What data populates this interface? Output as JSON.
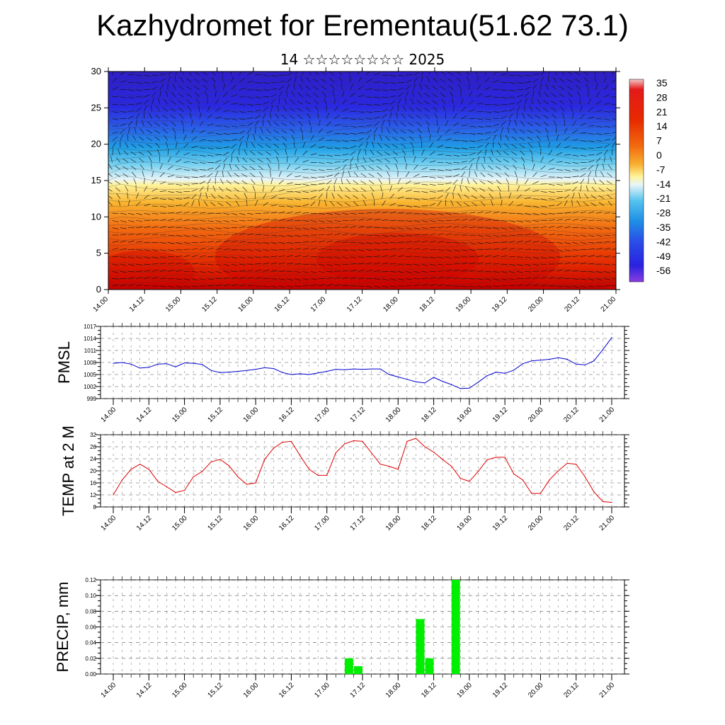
{
  "title": "Kazhydromet for Erementau(51.62 73.1)",
  "subtitle": "14 ☆☆☆☆☆☆☆☆ 2025",
  "x_tick_labels": [
    "14.00",
    "14.12",
    "15.00",
    "15.12",
    "16.00",
    "16.12",
    "17.00",
    "17.12",
    "18.00",
    "18.12",
    "19.00",
    "19.12",
    "20.00",
    "20.12",
    "21.00"
  ],
  "chart_data": [
    {
      "type": "heatmap",
      "name_printed": "",
      "x_ticks": [
        "14.00",
        "14.12",
        "15.00",
        "15.12",
        "16.00",
        "16.12",
        "17.00",
        "17.12",
        "18.00",
        "18.12",
        "19.00",
        "19.12",
        "20.00",
        "20.12",
        "21.00"
      ],
      "ylim": [
        0,
        30
      ],
      "y_ticks": [
        0,
        5,
        10,
        15,
        20,
        25,
        30
      ],
      "colorbar_levels": [
        35,
        28,
        21,
        14,
        7,
        0,
        -7,
        -14,
        -21,
        -28,
        -35,
        -42,
        -49,
        -56
      ],
      "overlay": "wind vectors"
    },
    {
      "type": "line",
      "ylabel": "PMSL",
      "ylim": [
        999,
        1017
      ],
      "y_ticks": [
        999,
        1002,
        1005,
        1008,
        1011,
        1014,
        1017
      ],
      "color": "#0000cc",
      "x": [
        0,
        0.125,
        0.25,
        0.375,
        0.5,
        0.625,
        0.75,
        0.875,
        1,
        1.125,
        1.25,
        1.375,
        1.5,
        1.625,
        1.75,
        1.875,
        2,
        2.125,
        2.25,
        2.375,
        2.5,
        2.625,
        2.75,
        2.875,
        3,
        3.125,
        3.25,
        3.375,
        3.5,
        3.625,
        3.75,
        3.875,
        4,
        4.125,
        4.25,
        4.375,
        4.5,
        4.625,
        4.75,
        4.875,
        5,
        5.125,
        5.25,
        5.375,
        5.5,
        5.625,
        5.75,
        5.875,
        6,
        6.125,
        6.25,
        6.375,
        6.5,
        6.625,
        6.75,
        6.875,
        7
      ],
      "values": [
        1007.8,
        1008.0,
        1007.6,
        1006.6,
        1006.8,
        1007.6,
        1007.7,
        1006.9,
        1007.9,
        1007.8,
        1007.5,
        1006.0,
        1005.5,
        1005.6,
        1005.8,
        1006.0,
        1006.3,
        1006.7,
        1006.5,
        1005.5,
        1005.0,
        1005.2,
        1005.0,
        1005.4,
        1005.8,
        1006.3,
        1006.2,
        1006.4,
        1006.3,
        1006.4,
        1006.4,
        1005.0,
        1004.4,
        1003.8,
        1003.2,
        1002.9,
        1004.3,
        1003.3,
        1002.5,
        1001.5,
        1001.6,
        1003.1,
        1004.7,
        1005.6,
        1005.3,
        1006.1,
        1007.7,
        1008.4,
        1008.6,
        1008.8,
        1009.2,
        1008.8,
        1007.6,
        1007.4,
        1008.4,
        1011.2,
        1014.2
      ]
    },
    {
      "type": "line",
      "ylabel": "TEMP at 2 M",
      "ylim": [
        8,
        32
      ],
      "y_ticks": [
        8,
        12,
        16,
        20,
        24,
        28,
        32
      ],
      "color": "#dd0000",
      "x": [
        0,
        0.125,
        0.25,
        0.375,
        0.5,
        0.625,
        0.75,
        0.875,
        1,
        1.125,
        1.25,
        1.375,
        1.5,
        1.625,
        1.75,
        1.875,
        2,
        2.125,
        2.25,
        2.375,
        2.5,
        2.625,
        2.75,
        2.875,
        3,
        3.125,
        3.25,
        3.375,
        3.5,
        3.625,
        3.75,
        3.875,
        4,
        4.125,
        4.25,
        4.375,
        4.5,
        4.625,
        4.75,
        4.875,
        5,
        5.125,
        5.25,
        5.375,
        5.5,
        5.625,
        5.75,
        5.875,
        6,
        6.125,
        6.25,
        6.375,
        6.5,
        6.625,
        6.75,
        6.875,
        7
      ],
      "values": [
        12,
        17,
        20.5,
        22.2,
        20.5,
        16.5,
        14.7,
        12.8,
        13.5,
        18,
        19.8,
        23,
        23.8,
        21.7,
        18,
        15.5,
        16,
        23.8,
        27.5,
        29.5,
        29.8,
        25,
        20.5,
        18.5,
        18.5,
        26,
        29,
        30,
        29.8,
        26,
        22.2,
        21.5,
        20.5,
        29.8,
        30.8,
        28,
        26.2,
        23.8,
        21.5,
        17.5,
        16.5,
        19.8,
        23.7,
        24.5,
        24.5,
        19,
        17,
        12.5,
        12.5,
        17,
        20,
        22.5,
        22.2,
        18,
        13,
        9.8,
        9.5
      ]
    },
    {
      "type": "bar",
      "ylabel": "PRECIP, mm",
      "ylim": [
        0,
        0.12
      ],
      "y_ticks": [
        "0.00",
        "0.02",
        "0.04",
        "0.06",
        "0.08",
        "0.10",
        "0.12"
      ],
      "color": "#00ee00",
      "bars": [
        {
          "x": 3.31,
          "value": 0.02
        },
        {
          "x": 3.44,
          "value": 0.01
        },
        {
          "x": 4.31,
          "value": 0.07
        },
        {
          "x": 4.44,
          "value": 0.02
        },
        {
          "x": 4.81,
          "value": 0.12
        }
      ]
    }
  ]
}
